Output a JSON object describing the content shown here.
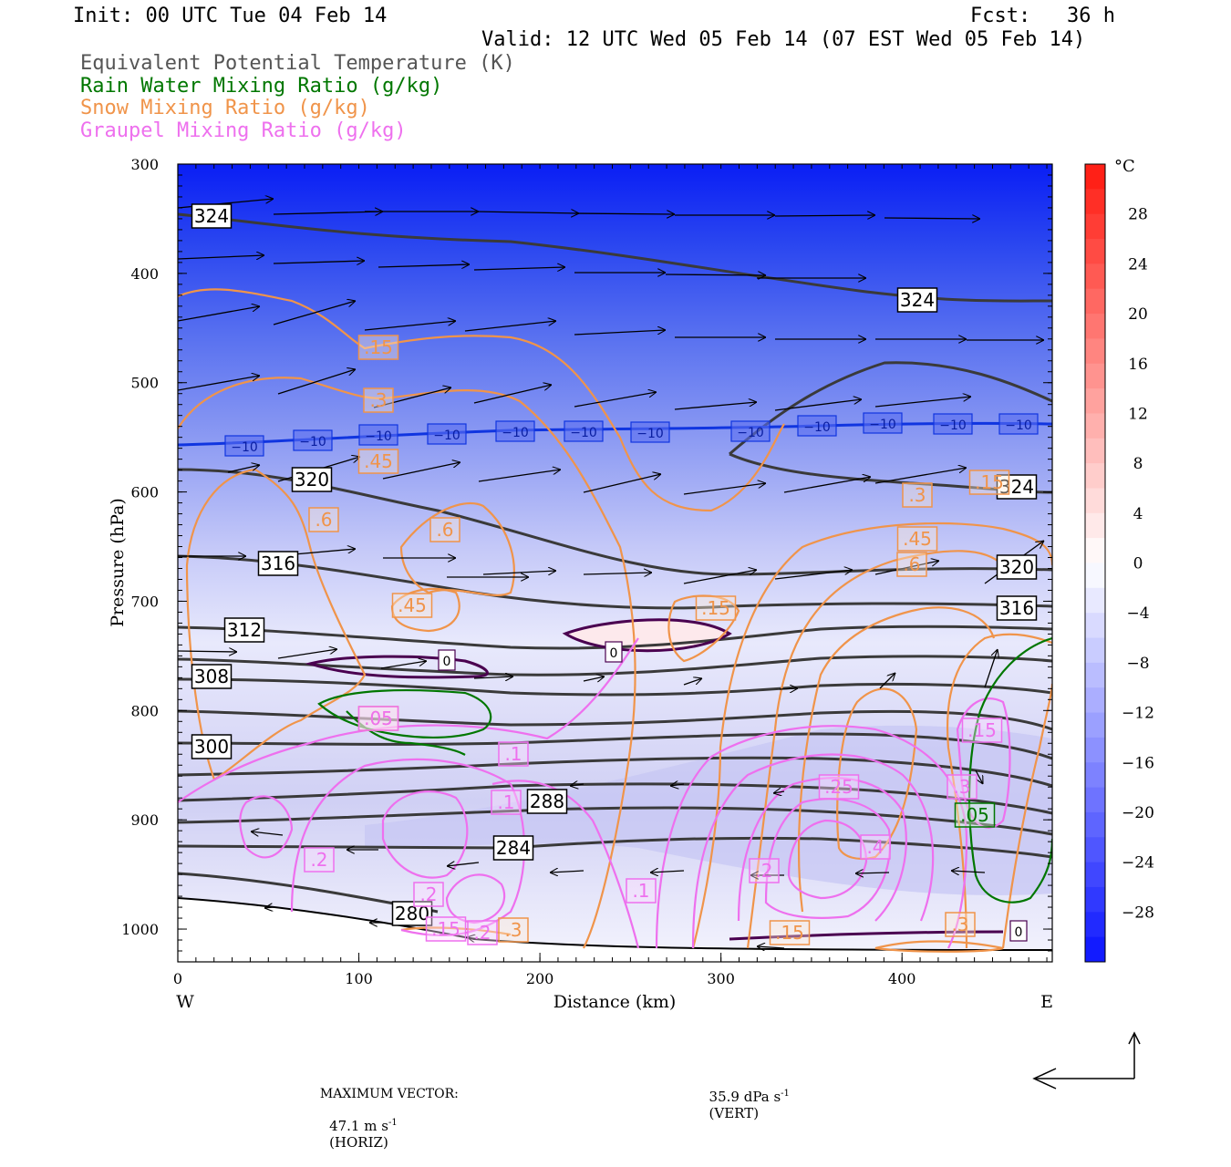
{
  "header": {
    "init": "Init: 00 UTC Tue 04 Feb 14",
    "fcst": "Fcst:   36 h",
    "valid": "Valid: 12 UTC Wed 05 Feb 14 (07 EST Wed 05 Feb 14)"
  },
  "legend": [
    {
      "text": "Equivalent Potential Temperature (K)",
      "color": "#555555"
    },
    {
      "text": "Rain Water Mixing Ratio (g/kg)",
      "color": "#007700"
    },
    {
      "text": "Snow Mixing Ratio (g/kg)",
      "color": "#f0944a"
    },
    {
      "text": "Graupel Mixing Ratio (g/kg)",
      "color": "#ee70ee"
    }
  ],
  "footer": {
    "max_vector_label": "MAXIMUM VECTOR:",
    "horiz": "47.1 m s",
    "horiz_unit": "(HORIZ)",
    "vert": "35.9 dPa s",
    "vert_unit": "(VERT)",
    "exp": "-1"
  },
  "chart_data": {
    "type": "cross-section",
    "xlabel": "Distance (km)",
    "ylabel": "Pressure (hPa)",
    "x_ticks": [
      0,
      100,
      200,
      300,
      400
    ],
    "xlim": [
      0,
      483
    ],
    "y_ticks": [
      300,
      400,
      500,
      600,
      700,
      800,
      900,
      1000
    ],
    "ylim": [
      300,
      1030
    ],
    "x_end_labels": [
      "W",
      "E"
    ],
    "colorbar": {
      "unit": "°C",
      "ticks": [
        28,
        24,
        20,
        16,
        12,
        8,
        4,
        0,
        -4,
        -8,
        -12,
        -16,
        -20,
        -24,
        -28
      ],
      "range": [
        -32,
        32
      ]
    },
    "theta_e_labels": [
      "324",
      "324",
      "320",
      "324",
      "316",
      "320",
      "316",
      "312",
      "308",
      "300",
      "288",
      "284",
      "280"
    ],
    "temp_labels": [
      "-10",
      "-10",
      "-10",
      "-10",
      "-10",
      "-10",
      "-10",
      "-10",
      "-10",
      "-10",
      "-10",
      "-10",
      "0",
      "0",
      "0"
    ],
    "snow_labels": [
      ".15",
      ".3",
      ".45",
      ".6",
      ".6",
      ".45",
      ".15",
      ".3",
      ".45",
      ".6",
      ".15",
      ".3",
      ".15",
      ".3",
      ".05"
    ],
    "graupel_labels": [
      ".05",
      ".1",
      ".1",
      ".2",
      ".2",
      ".1",
      ".2",
      ".25",
      ".4",
      ".3",
      ".15",
      ".2",
      ".15"
    ],
    "rain_labels": [
      ".05"
    ]
  }
}
